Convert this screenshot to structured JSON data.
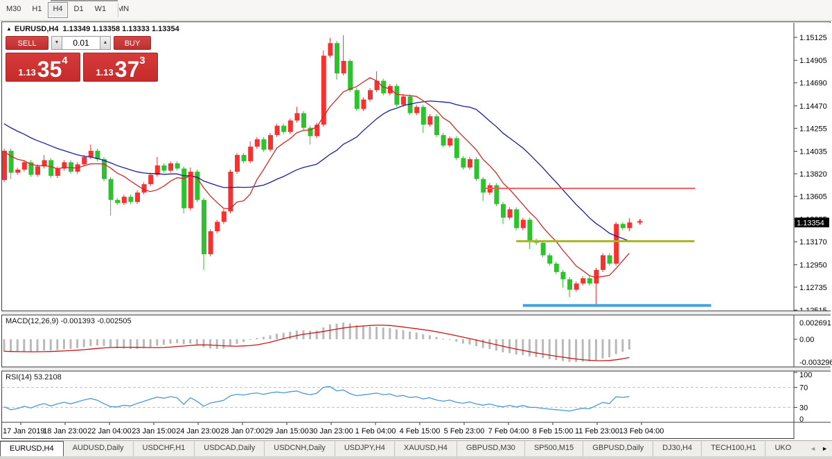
{
  "toolbar": {
    "periods": [
      {
        "label": "M30",
        "active": false
      },
      {
        "label": "H1",
        "active": false
      },
      {
        "label": "H4",
        "active": true
      },
      {
        "label": "D1",
        "active": false
      },
      {
        "label": "W1",
        "active": false
      },
      {
        "label": "MN",
        "active": false
      }
    ]
  },
  "chart": {
    "title_symbol": "EURUSD,H4",
    "title_ohlc": "1.13349 1.13358 1.13333 1.13354"
  },
  "trade_panel": {
    "sell_label": "SELL",
    "buy_label": "BUY",
    "volume": "0.01",
    "spin_down_icon": "▼",
    "spin_up_icon": "▲",
    "sell_price": {
      "prefix": "1.13",
      "big": "35",
      "sup": "4"
    },
    "buy_price": {
      "prefix": "1.13",
      "big": "37",
      "sup": "3"
    }
  },
  "indicator_labels": {
    "macd": "MACD(12,26,9) -0.001393 -0.002505",
    "rsi": "RSI(14) 53.2108"
  },
  "price_axis": {
    "labels": [
      "1.15125",
      "1.14905",
      "1.14690",
      "1.14470",
      "1.14255",
      "1.14035",
      "1.13820",
      "1.13605",
      "1.13385",
      "1.13170",
      "1.12950",
      "1.12735",
      "1.12515"
    ],
    "current": "1.13354"
  },
  "macd_axis": {
    "top": "0.002691",
    "zero": "0.00",
    "bottom": "-0.003296"
  },
  "rsi_axis": {
    "labels": [
      100,
      70,
      30,
      0
    ],
    "dashed_levels": [
      70,
      30
    ]
  },
  "time_axis": {
    "labels": [
      "17 Jan 2019",
      "18 Jan 23:00",
      "22 Jan 04:00",
      "23 Jan 15:00",
      "24 Jan 23:00",
      "28 Jan 07:00",
      "29 Jan 15:00",
      "30 Jan 23:00",
      "1 Feb 04:00",
      "4 Feb 15:00",
      "5 Feb 23:00",
      "7 Feb 04:00",
      "8 Feb 15:00",
      "11 Feb 23:00",
      "13 Feb 04:00"
    ]
  },
  "bottom_tabs": {
    "tabs": [
      {
        "label": "EURUSD,H4",
        "active": true
      },
      {
        "label": "AUDUSD,Daily",
        "active": false
      },
      {
        "label": "USDCHF,H1",
        "active": false
      },
      {
        "label": "USDCAD,Daily",
        "active": false
      },
      {
        "label": "USDCNH,Daily",
        "active": false
      },
      {
        "label": "USDJPY,H4",
        "active": false
      },
      {
        "label": "XAUUSD,H4",
        "active": false
      },
      {
        "label": "GBPUSD,M30",
        "active": false
      },
      {
        "label": "SP500,M15",
        "active": false
      },
      {
        "label": "GBPUSD,Daily",
        "active": false
      },
      {
        "label": "DJ30,H4",
        "active": false
      },
      {
        "label": "TECH100,H1",
        "active": false
      },
      {
        "label": "UKO",
        "active": false,
        "truncated": true
      }
    ],
    "scroll_left_icon": "◄",
    "scroll_right_icon": "►"
  },
  "colors": {
    "bull": "#f93030",
    "bear": "#2ec22e",
    "ma_fast": "#d62525",
    "ma_slow": "#1c1c9e",
    "hline_red": "#f25b5b",
    "hline_olive": "#a8b41e",
    "hline_blue": "#44a2e0",
    "macd_hist": "#b9b9b9",
    "macd_signal": "#cc1414",
    "rsi_line": "#4a97d8",
    "badge_bg": "#000000",
    "badge_text": "#ffffff"
  },
  "chart_data": {
    "type": "candlestick",
    "symbol": "EURUSD",
    "timeframe": "H4",
    "last_price": 1.13354,
    "ohlc_display": {
      "open": 1.13349,
      "high": 1.13358,
      "low": 1.13333,
      "close": 1.13354
    },
    "price_axis_range": {
      "top": 1.15125,
      "bottom": 1.12515
    },
    "first_open": 1.1376,
    "closes": [
      1.1404,
      1.1383,
      1.1386,
      1.1393,
      1.1381,
      1.1389,
      1.1395,
      1.138,
      1.1387,
      1.1393,
      1.1384,
      1.1391,
      1.1398,
      1.1404,
      1.1396,
      1.1377,
      1.1357,
      1.1354,
      1.136,
      1.1355,
      1.1364,
      1.1372,
      1.1381,
      1.139,
      1.1385,
      1.1392,
      1.1387,
      1.1349,
      1.1384,
      1.1357,
      1.1305,
      1.1327,
      1.1336,
      1.1346,
      1.1384,
      1.14,
      1.1394,
      1.1408,
      1.1415,
      1.1405,
      1.1419,
      1.1428,
      1.1422,
      1.1433,
      1.144,
      1.1426,
      1.1418,
      1.1429,
      1.1495,
      1.1507,
      1.1478,
      1.149,
      1.1462,
      1.1444,
      1.1453,
      1.1462,
      1.1471,
      1.1459,
      1.1466,
      1.1448,
      1.1456,
      1.144,
      1.1446,
      1.1429,
      1.1437,
      1.1419,
      1.1409,
      1.1416,
      1.1397,
      1.1388,
      1.1396,
      1.1377,
      1.1364,
      1.1371,
      1.1353,
      1.134,
      1.1348,
      1.133,
      1.1338,
      1.1318,
      1.1316,
      1.1304,
      1.1296,
      1.1288,
      1.1281,
      1.1271,
      1.1277,
      1.1282,
      1.1277,
      1.129,
      1.1304,
      1.1296,
      1.1334,
      1.133,
      1.13354
    ],
    "high_extra": {
      "6": 0.0005,
      "13": 0.0006,
      "23": 0.0008,
      "28": 0.0004,
      "37": 0.0005,
      "44": 0.0006,
      "48": 0.0005,
      "49": 0.0005,
      "51": 0.00245,
      "56": 0.0009,
      "94": 0.0004
    },
    "low_extra": {
      "1": 0.0006,
      "16": 0.0015,
      "27": 0.0005,
      "30": 0.0015,
      "46": 0.0008,
      "50": 0.0006,
      "63": 0.0008,
      "72": 0.0008,
      "75": 0.0006,
      "79": 0.0008,
      "84": 0.0008,
      "85": 0.0007,
      "89": 0.0022,
      "94": 0.0003
    },
    "pre_window_closes": [
      1.15,
      1.1492,
      1.1486,
      1.149,
      1.1482,
      1.1476,
      1.147,
      1.1474,
      1.1466,
      1.146,
      1.1464,
      1.1456,
      1.145,
      1.1444,
      1.1448,
      1.144,
      1.1434,
      1.1438,
      1.143,
      1.1424,
      1.1428,
      1.142,
      1.1414,
      1.1418,
      1.141,
      1.1404,
      1.1408,
      1.14,
      1.1394,
      1.1388
    ],
    "overlays": {
      "ma_fast_period": 8,
      "ma_slow_period": 24
    },
    "hlines": [
      {
        "name": "resistance-line",
        "price": 1.1368,
        "color_key": "hline_red",
        "from_bar": 72.3,
        "to_bar": 103.9,
        "width": 2
      },
      {
        "name": "pivot-line",
        "price": 1.13175,
        "color_key": "hline_olive",
        "from_bar": 77.0,
        "to_bar": 103.8,
        "width": 3
      },
      {
        "name": "support-line",
        "price": 1.1256,
        "color_key": "hline_blue",
        "from_bar": 78.0,
        "to_bar": 106.3,
        "width": 4
      }
    ],
    "price_marker": {
      "price": 1.1336,
      "bar": 95.6
    },
    "macd": {
      "fast": 12,
      "slow": 26,
      "signal": 9,
      "main_last": -0.001393,
      "signal_last": -0.002505
    },
    "rsi": {
      "period": 14,
      "last": 53.2108,
      "levels": [
        70,
        30
      ]
    }
  }
}
